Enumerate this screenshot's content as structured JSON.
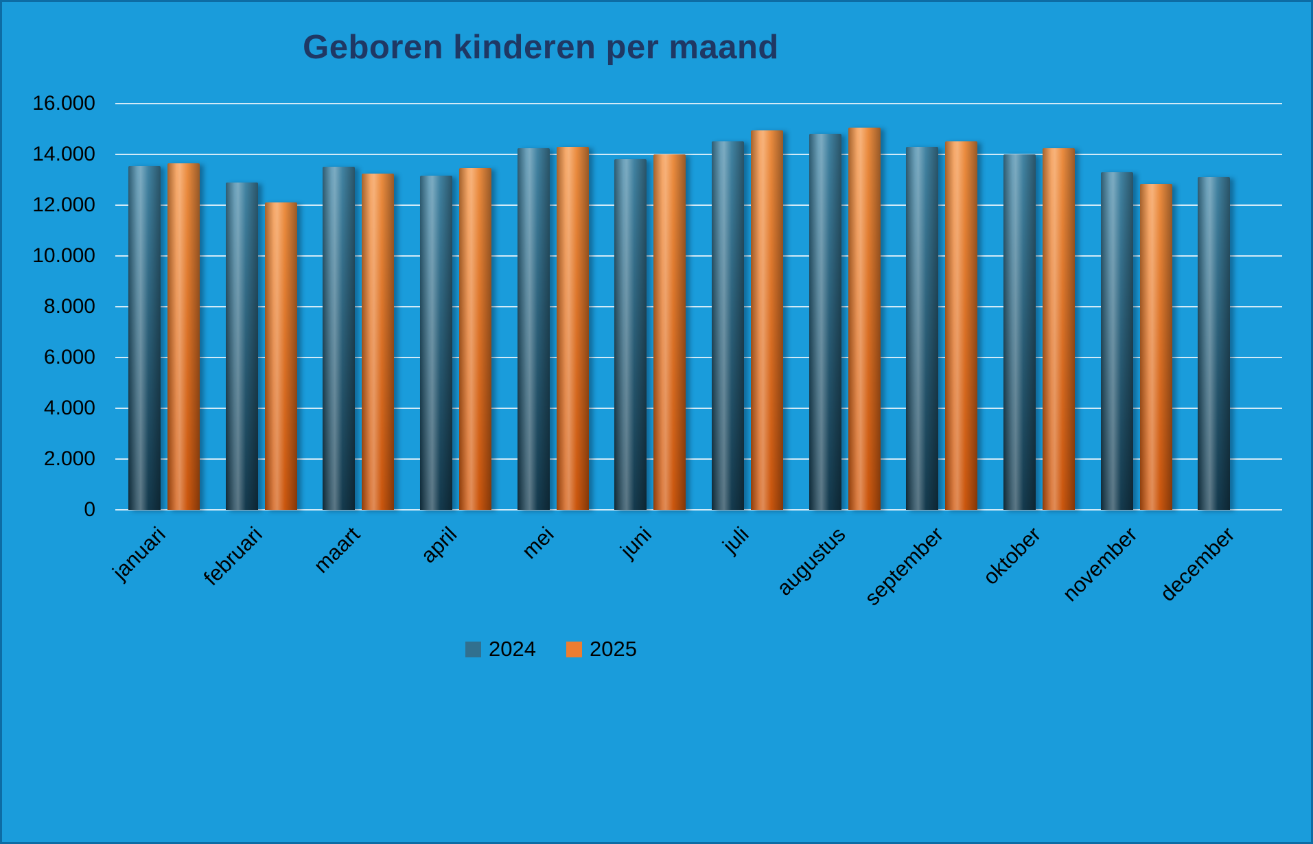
{
  "chart_data": {
    "type": "bar",
    "title": "Geboren kinderen per maand",
    "categories": [
      "januari",
      "februari",
      "maart",
      "april",
      "mei",
      "juni",
      "juli",
      "augustus",
      "september",
      "oktober",
      "november",
      "december"
    ],
    "series": [
      {
        "name": "2024",
        "color": "#31708f",
        "color_light": "#4488a8",
        "color_dark": "#153c50",
        "values": [
          13550,
          12900,
          13500,
          13150,
          14250,
          13800,
          14500,
          14800,
          14300,
          14000,
          13300,
          13100
        ]
      },
      {
        "name": "2025",
        "color": "#ed7d31",
        "color_light": "#f49242",
        "color_dark": "#d2590e",
        "values": [
          13650,
          12100,
          13250,
          13450,
          14300,
          14000,
          14950,
          15050,
          14500,
          14250,
          12850,
          null
        ]
      }
    ],
    "xlabel": "",
    "ylabel": "",
    "ylim": [
      0,
      16000
    ],
    "ytick_step": 2000,
    "ytick_labels": [
      "0",
      "2.000",
      "4.000",
      "6.000",
      "8.000",
      "10.000",
      "12.000",
      "14.000",
      "16.000"
    ],
    "grid": true,
    "legend_position": "bottom"
  },
  "colors": {
    "background": "#1a9cdb",
    "border": "#0d6ca4",
    "title_text": "#1f3864",
    "axis_text": "#000000",
    "gridline": "#f3f8fc"
  }
}
